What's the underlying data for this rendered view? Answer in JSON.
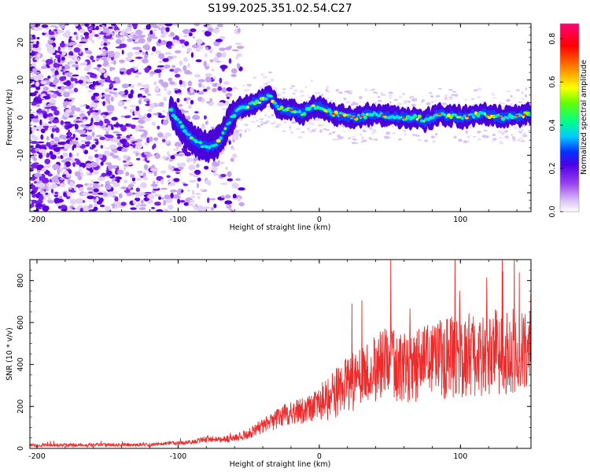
{
  "title": "S199.2025.351.02.54.C27",
  "chart_data": [
    {
      "type": "heatmap",
      "title": "S199.2025.351.02.54.C27",
      "xlabel": "Height of straight line (km)",
      "ylabel": "Frequency (Hz)",
      "xlim": [
        -205,
        150
      ],
      "ylim": [
        -25,
        25
      ],
      "x_ticks": [
        "-200",
        "-100",
        "0",
        "100"
      ],
      "y_ticks": [
        "-20",
        "-10",
        "0",
        "10",
        "20"
      ],
      "signal_trace": {
        "description": "central frequency track of high spectral amplitude",
        "x": [
          -105,
          -100,
          -92,
          -85,
          -78,
          -72,
          -65,
          -58,
          -52,
          -45,
          -40,
          -35,
          -30,
          -25,
          -20,
          -12,
          -5,
          0,
          10,
          25,
          40,
          55,
          70,
          75,
          85,
          100,
          115,
          130,
          150
        ],
        "y": [
          2,
          -1,
          -5,
          -7,
          -8,
          -7,
          -2,
          2,
          3,
          4,
          5,
          6,
          3,
          2,
          2,
          1,
          3,
          3,
          1,
          0,
          1,
          0,
          0,
          -1,
          1,
          0,
          1,
          0,
          1
        ]
      },
      "colorbar": {
        "label": "Normalized spectral amplitude",
        "range": [
          0.0,
          0.87
        ],
        "ticks": [
          "0.0",
          "0.2",
          "0.4",
          "0.6",
          "0.8"
        ],
        "colors": [
          "#ffffff",
          "#d9bff5",
          "#9a40f0",
          "#4b00e6",
          "#0033ff",
          "#00ccff",
          "#00ff88",
          "#66ff00",
          "#ffff00",
          "#ff8800",
          "#ff0000",
          "#ff0077"
        ]
      }
    },
    {
      "type": "line",
      "title": "",
      "xlabel": "Height of straight line (km)",
      "ylabel": "SNR (10 * v/v)",
      "xlim": [
        -205,
        150
      ],
      "ylim": [
        0,
        900
      ],
      "x_ticks": [
        "-200",
        "-100",
        "0",
        "100"
      ],
      "y_ticks": [
        "0",
        "200",
        "400",
        "600",
        "800"
      ],
      "color": "#ee2a2a",
      "envelope": {
        "x": [
          -205,
          -120,
          -90,
          -80,
          -70,
          -60,
          -50,
          -40,
          -30,
          -20,
          -10,
          0,
          10,
          20,
          40,
          50,
          60,
          80,
          100,
          120,
          150
        ],
        "y": [
          15,
          18,
          30,
          45,
          40,
          50,
          70,
          110,
          140,
          170,
          180,
          220,
          250,
          310,
          370,
          420,
          380,
          420,
          440,
          460,
          470
        ]
      }
    }
  ]
}
